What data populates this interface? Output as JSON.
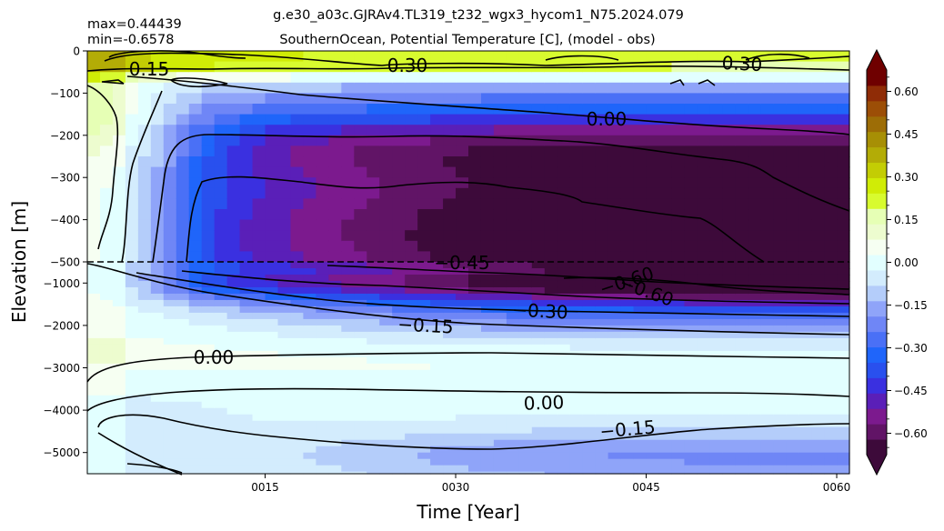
{
  "chart_data": {
    "type": "heatmap",
    "title": "g.e30_a03c.GJRAv4.TL319_t232_wgx3_hycom1_N75.2024.079",
    "subtitle": "SouthernOcean, Potential Temperature [C], (model - obs)",
    "stats": {
      "max_label": "max=0.44439",
      "min_label": "min=-0.6578"
    },
    "xlabel": "Time [Year]",
    "ylabel": "Elevation [m]",
    "xlim": [
      1,
      61
    ],
    "x_ticks": [
      {
        "value": 15,
        "label": "0015"
      },
      {
        "value": 30,
        "label": "0030"
      },
      {
        "value": 45,
        "label": "0045"
      },
      {
        "value": 60,
        "label": "0060"
      }
    ],
    "upper_panel": {
      "ylim": [
        -500,
        0
      ],
      "y_ticks": [
        {
          "value": 0,
          "label": "0"
        },
        {
          "value": -100,
          "label": "−100"
        },
        {
          "value": -200,
          "label": "−200"
        },
        {
          "value": -300,
          "label": "−300"
        },
        {
          "value": -400,
          "label": "−400"
        },
        {
          "value": -500,
          "label": "−500"
        }
      ]
    },
    "lower_panel": {
      "ylim": [
        -5500,
        -500
      ],
      "y_ticks": [
        {
          "value": -1000,
          "label": "−1000"
        },
        {
          "value": -2000,
          "label": "−2000"
        },
        {
          "value": -3000,
          "label": "−3000"
        },
        {
          "value": -4000,
          "label": "−4000"
        },
        {
          "value": -5000,
          "label": "−5000"
        }
      ]
    },
    "split_depth": -500,
    "colorbar": {
      "range": [
        -0.675,
        0.675
      ],
      "extend": "both",
      "tick_values": [
        0.6,
        0.45,
        0.3,
        0.15,
        0.0,
        -0.15,
        -0.3,
        -0.45,
        -0.6
      ],
      "tick_labels": [
        "0.60",
        "0.45",
        "0.30",
        "0.15",
        "0.00",
        "−0.15",
        "−0.30",
        "−0.45",
        "−0.60"
      ],
      "colors_low_to_high": [
        "#3d0a3a",
        "#611466",
        "#7c1a8e",
        "#5a1fb8",
        "#3a30e0",
        "#2950ee",
        "#1f65fa",
        "#4a70f6",
        "#6f86f6",
        "#8fa4f9",
        "#b4cdfa",
        "#d3ecfd",
        "#e2ffff",
        "#f6fff2",
        "#edfccf",
        "#e6ffb5",
        "#d8fb2f",
        "#d0ec06",
        "#c3cd04",
        "#b3ac06",
        "#a78f05",
        "#9d6d06",
        "#9c4e06",
        "#8f2c06",
        "#6f0000"
      ]
    },
    "contours": [
      {
        "label": "0.15",
        "level": 0.15
      },
      {
        "label": "0.30",
        "level": 0.3
      },
      {
        "label": "0.30",
        "level": 0.3
      },
      {
        "label": "0.00",
        "level": 0.0
      },
      {
        "label": "−0.45",
        "level": -0.45
      },
      {
        "label": "−0.60",
        "level": -0.6
      },
      {
        "label": "−0.60",
        "level": -0.6
      },
      {
        "label": "−0.30",
        "level": -0.3
      },
      {
        "label": "−0.15",
        "level": -0.15
      },
      {
        "label": "0.00",
        "level": 0.0
      },
      {
        "label": "0.00",
        "level": 0.0
      },
      {
        "label": "−0.15",
        "level": -0.15
      }
    ]
  }
}
